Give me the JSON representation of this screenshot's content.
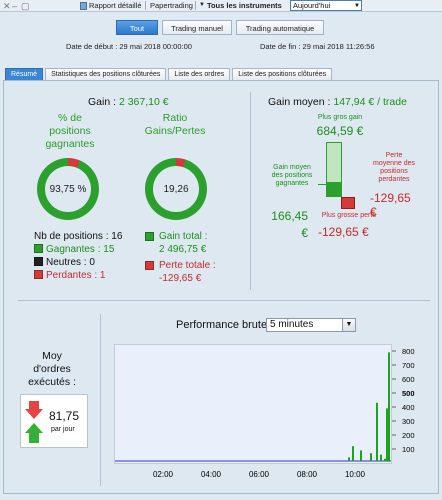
{
  "toolbar": {
    "report_label": "Rapport détaillé",
    "papertrading_label": "Papertrading",
    "instruments_label": "Tous les instruments",
    "period_value": "Aujourd'hui"
  },
  "modes": [
    {
      "label": "Tout",
      "active": true
    },
    {
      "label": "Trading manuel",
      "active": false
    },
    {
      "label": "Trading automatique",
      "active": false
    }
  ],
  "dates": {
    "start": "Date de début :  29 mai 2018 00:00:00",
    "end": "Date de fin :  29 mai 2018 11:26:56"
  },
  "tabs": [
    {
      "label": "Résumé",
      "active": true
    },
    {
      "label": "Statistiques des positions clôturées",
      "active": false
    },
    {
      "label": "Liste des ordres",
      "active": false
    },
    {
      "label": "Liste des positions clôturées",
      "active": false
    }
  ],
  "summary": {
    "gain_label": "Gain : ",
    "gain_value": "2 367,10 €",
    "pct_title": "% de\npositions\ngagnantes",
    "pct_value": "93,75 %",
    "pct_fraction": 0.9375,
    "ratio_title": "Ratio\nGains/Pertes",
    "ratio_value": "19,26",
    "ratio_fraction": 0.9506,
    "nb_positions": "Nb de positions : 16",
    "gagnantes": "Gagnantes : 15",
    "neutres": "Neutres : 0",
    "perdantes": "Perdantes : 1",
    "gain_total": "Gain total :\n2 496,75 €",
    "perte_totale": "Perte totale :\n-129,65 €",
    "gain_moyen_label": "Gain moyen : ",
    "gain_moyen_value": "147,94 € / trade",
    "plus_gros_gain_label": "Plus gros gain",
    "plus_gros_gain_value": "684,59 €",
    "gain_moyen_positions_label": "Gain moyen\ndes positions\ngagnantes",
    "gain_moyen_positions_value": "166,45\n€",
    "perte_moyenne_label": "Perte\nmoyenne des\npositions\nperdantes",
    "perte_moyenne_value": "-129,65\n€",
    "plus_grosse_perte_label": "Plus grosse perte",
    "plus_grosse_perte_value": "-129,65 €"
  },
  "moy_ordres": {
    "label": "Moy\nd'ordres\nexécutés :",
    "value": "81,75",
    "unit": "par jour"
  },
  "performance": {
    "title": "Performance brute",
    "interval": "5 minutes"
  },
  "colors": {
    "green": "#2ca02c",
    "red": "#d33b3b",
    "accent": "#3a85d4"
  },
  "chart_data": {
    "type": "bar",
    "x_ticks": [
      "02:00",
      "04:00",
      "06:00",
      "08:00",
      "10:00"
    ],
    "y_ticks": [
      100,
      200,
      300,
      400,
      500,
      600,
      700,
      800
    ],
    "ylim": [
      0,
      800
    ],
    "xlim": [
      "00:00",
      "11:30"
    ],
    "series": [
      {
        "x": [
          "09:45",
          "09:55",
          "10:15",
          "10:40",
          "10:55",
          "11:05",
          "11:15",
          "11:20",
          "11:25"
        ],
        "values": [
          40,
          120,
          90,
          70,
          430,
          60,
          30,
          390,
          790
        ]
      }
    ]
  }
}
